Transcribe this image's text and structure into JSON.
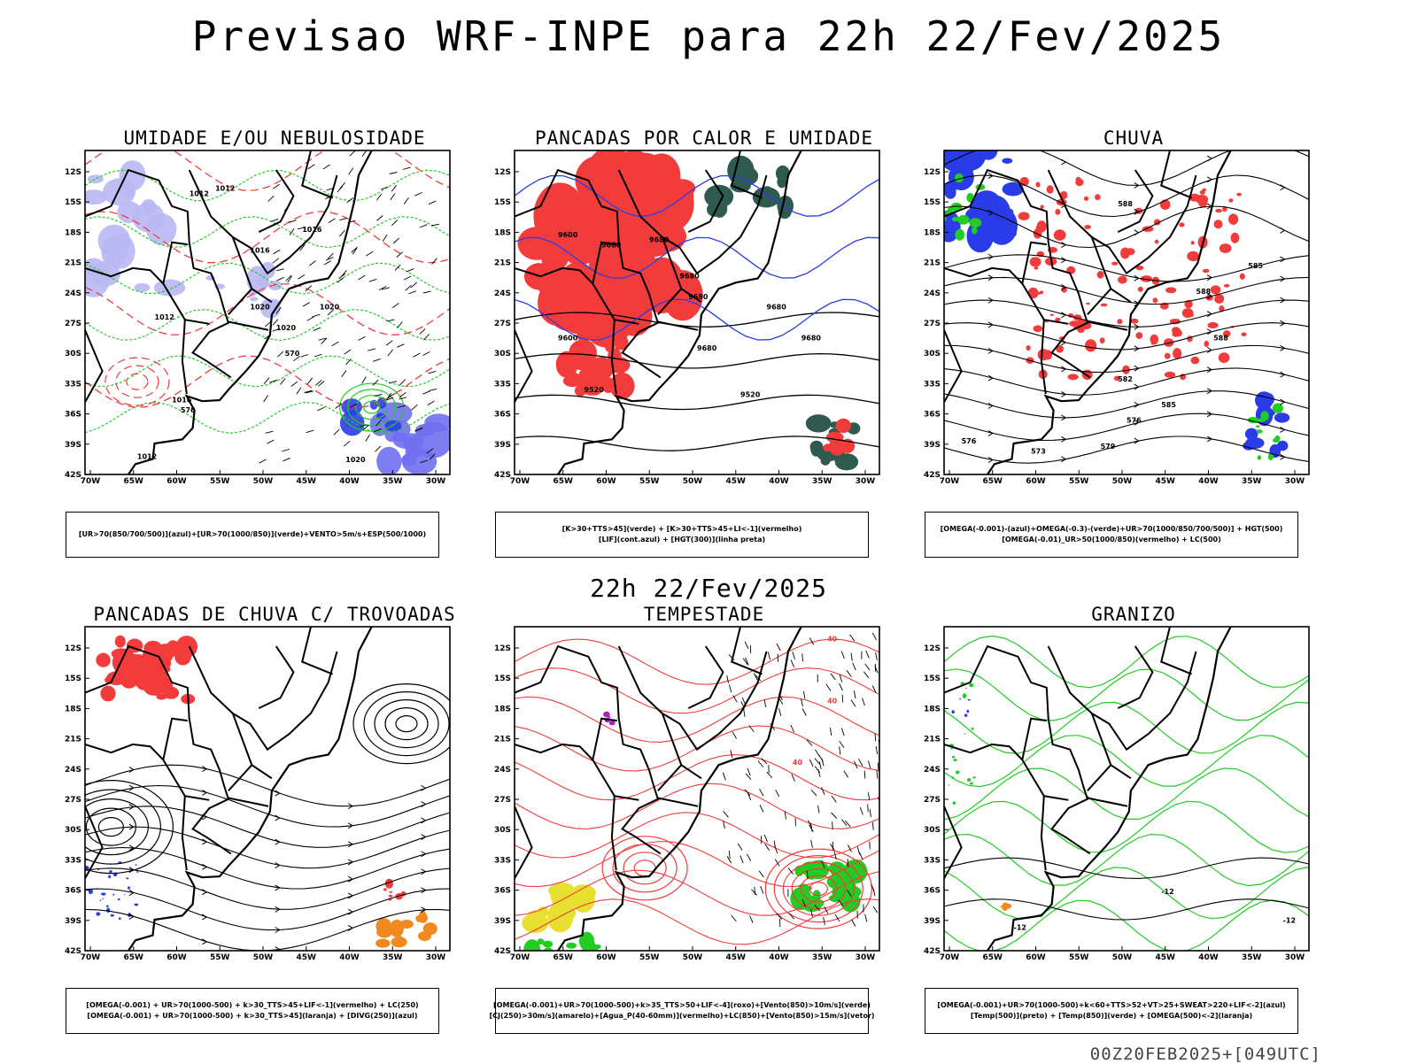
{
  "header": {
    "title": "Previsao WRF-INPE  para 22h 22/Fev/2025"
  },
  "mid_title": "22h 22/Fev/2025",
  "footer": "00Z20FEB2025+[049UTC]",
  "colors": {
    "red": "#f23c3c",
    "green": "#22cc22",
    "blue": "#2a3ce8",
    "lightblue": "#b8b8f4",
    "darkgreen": "#2f5a4f",
    "orange": "#f08a20",
    "yellow": "#e8e030",
    "purple": "#b020c0",
    "black": "#000000"
  },
  "chart_data": [
    {
      "type": "map-overlay",
      "title": "UMIDADE E/OU NEBULOSIDADE",
      "legend": [
        "[UR>70(850/700/500)](azul)+[UR>70(1000/850)](verde)+VENTO>5m/s+ESP(500/1000)"
      ],
      "x_ticks": [
        "70W",
        "65W",
        "60W",
        "55W",
        "50W",
        "45W",
        "40W",
        "35W",
        "30W"
      ],
      "y_ticks": [
        "12S",
        "15S",
        "18S",
        "21S",
        "24S",
        "27S",
        "30S",
        "33S",
        "36S",
        "39S",
        "42S"
      ],
      "contour_labels": [
        "1012",
        "1012",
        "1016",
        "1016",
        "1020",
        "1020",
        "1020",
        "1012",
        "1016",
        "576",
        "570",
        "1012",
        "1020"
      ]
    },
    {
      "type": "map-overlay",
      "title": "PANCADAS POR CALOR E UMIDADE",
      "legend": [
        "[K>30+TTS>45](verde) + [K>30+TTS>45+LI<-1](vermelho)",
        "[LIF](cont.azul) + [HGT(300)](linha preta)"
      ],
      "x_ticks": [
        "70W",
        "65W",
        "60W",
        "55W",
        "50W",
        "45W",
        "40W",
        "35W",
        "30W"
      ],
      "y_ticks": [
        "12S",
        "15S",
        "18S",
        "21S",
        "24S",
        "27S",
        "30S",
        "33S",
        "36S",
        "39S",
        "42S"
      ],
      "contour_labels": [
        "9600",
        "9680",
        "9680",
        "9680",
        "9680",
        "9680",
        "9600",
        "9520",
        "9520",
        "9680",
        "9680"
      ]
    },
    {
      "type": "map-overlay",
      "title": "CHUVA",
      "legend": [
        "[OMEGA(-0.001)-(azul)+OMEGA(-0.3)-(verde)+UR>70(1000/850/700/500)] + HGT(500)",
        "[OMEGA(-0.01)_UR>50(1000/850)(vermelho) + LC(500)"
      ],
      "x_ticks": [
        "70W",
        "65W",
        "60W",
        "55W",
        "50W",
        "45W",
        "40W",
        "35W",
        "30W"
      ],
      "y_ticks": [
        "12S",
        "15S",
        "18S",
        "21S",
        "24S",
        "27S",
        "30S",
        "33S",
        "36S",
        "39S",
        "42S"
      ],
      "contour_labels": [
        "588",
        "585",
        "588",
        "588",
        "582",
        "585",
        "579",
        "576",
        "573",
        "576"
      ]
    },
    {
      "type": "map-overlay",
      "title": "PANCADAS DE CHUVA C/ TROVOADAS",
      "legend": [
        "[OMEGA(-0.001) + UR>70(1000-500) + k>30_TTS>45+LIF<-1](vermelho) + LC(250)",
        "[OMEGA(-0.001) + UR>70(1000-500) + k>30_TTS>45](laranja) + [DIVG(250)](azul)"
      ],
      "x_ticks": [
        "70W",
        "65W",
        "60W",
        "55W",
        "50W",
        "45W",
        "40W",
        "35W",
        "30W"
      ],
      "y_ticks": [
        "12S",
        "15S",
        "18S",
        "21S",
        "24S",
        "27S",
        "30S",
        "33S",
        "36S",
        "39S",
        "42S"
      ],
      "contour_labels": []
    },
    {
      "type": "map-overlay",
      "title": "TEMPESTADE",
      "legend": [
        "[OMEGA(-0.001)+UR>70(1000-500)+k>35_TTS>50+LIF<-4](roxo)+[Vento(850)>10m/s](verde)",
        "[CJ(250)>30m/s](amarelo)+[Agua_P(40-60mm)](vermelho)+LC(850)+[Vento(850)>15m/s](vetor)"
      ],
      "x_ticks": [
        "70W",
        "65W",
        "60W",
        "55W",
        "50W",
        "45W",
        "40W",
        "35W",
        "30W"
      ],
      "y_ticks": [
        "12S",
        "15S",
        "18S",
        "21S",
        "24S",
        "27S",
        "30S",
        "33S",
        "36S",
        "39S",
        "42S"
      ],
      "contour_labels": [
        "40",
        "40",
        "40"
      ]
    },
    {
      "type": "map-overlay",
      "title": "GRANIZO",
      "legend": [
        "[OMEGA(-0.001)+UR>70(1000-500)+k<60+TTS>52+VT>25+SWEAT>220+LIF<-2](azul)",
        "[Temp(500)](preto) + [Temp(850)](verde) + [OMEGA(500)<-2](laranja)"
      ],
      "x_ticks": [
        "70W",
        "65W",
        "60W",
        "55W",
        "50W",
        "45W",
        "40W",
        "35W",
        "30W"
      ],
      "y_ticks": [
        "12S",
        "15S",
        "18S",
        "21S",
        "24S",
        "27S",
        "30S",
        "33S",
        "36S",
        "39S",
        "42S"
      ],
      "contour_labels": [
        "-12",
        "-12",
        "-12"
      ]
    }
  ]
}
